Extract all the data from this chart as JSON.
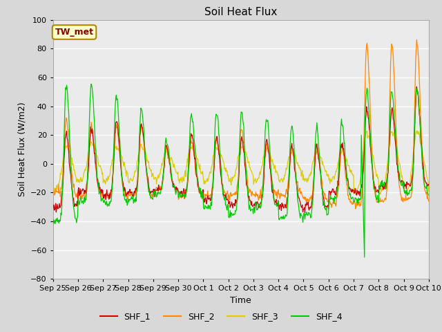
{
  "title": "Soil Heat Flux",
  "ylabel": "Soil Heat Flux (W/m2)",
  "xlabel": "Time",
  "ylim": [
    -80,
    100
  ],
  "yticks": [
    -80,
    -60,
    -40,
    -20,
    0,
    20,
    40,
    60,
    80,
    100
  ],
  "xtick_labels": [
    "Sep 25",
    "Sep 26",
    "Sep 27",
    "Sep 28",
    "Sep 29",
    "Sep 30",
    "Oct 1",
    "Oct 2",
    "Oct 3",
    "Oct 4",
    "Oct 5",
    "Oct 6",
    "Oct 7",
    "Oct 8",
    "Oct 9",
    "Oct 10"
  ],
  "annotation": "TW_met",
  "annotation_color": "#880000",
  "annotation_bg": "#ffffcc",
  "annotation_border": "#aa8800",
  "colors": {
    "SHF_1": "#cc0000",
    "SHF_2": "#ff8800",
    "SHF_3": "#ddcc00",
    "SHF_4": "#00cc00"
  },
  "legend_labels": [
    "SHF_1",
    "SHF_2",
    "SHF_3",
    "SHF_4"
  ],
  "bg_color": "#d8d8d8",
  "plot_bg": "#ebebeb",
  "grid_color": "#ffffff",
  "title_fontsize": 11,
  "label_fontsize": 9,
  "tick_fontsize": 8
}
